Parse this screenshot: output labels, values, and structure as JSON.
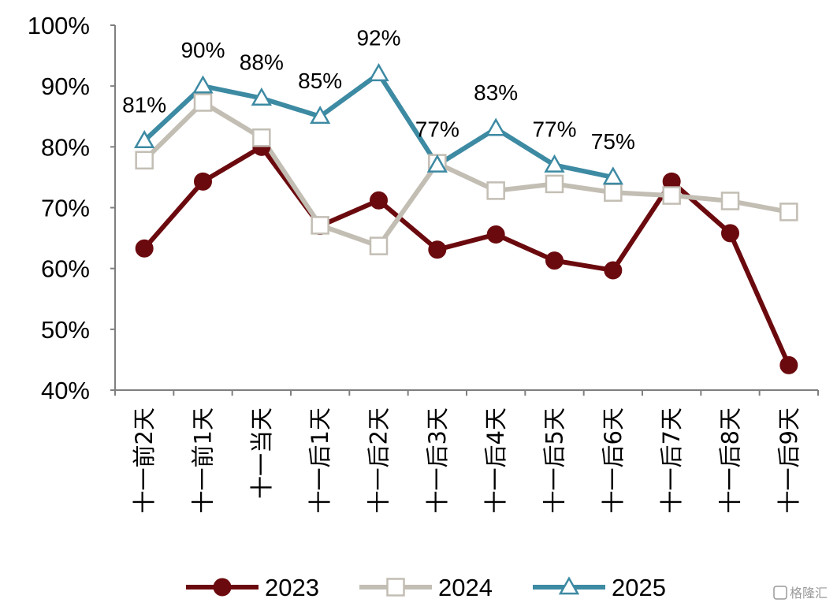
{
  "chart_data": {
    "type": "line",
    "categories": [
      "十一前2天",
      "十一前1天",
      "十一当天",
      "十一后1天",
      "十一后2天",
      "十一后3天",
      "十一后4天",
      "十一后5天",
      "十一后6天",
      "十一后7天",
      "十一后8天",
      "十一后9天"
    ],
    "ylim": [
      0.4,
      1.0
    ],
    "yticks": [
      "100%",
      "90%",
      "80%",
      "70%",
      "60%",
      "50%",
      "40%"
    ],
    "ytick_values": [
      1.0,
      0.9,
      0.8,
      0.7,
      0.6,
      0.5,
      0.4
    ],
    "grid": false,
    "legend_position": "bottom",
    "series": [
      {
        "name": "2023",
        "color": "#6b0a0e",
        "marker": "circle",
        "values": [
          0.633,
          0.743,
          0.8,
          0.67,
          0.712,
          0.631,
          0.656,
          0.613,
          0.597,
          0.743,
          0.658,
          0.441
        ]
      },
      {
        "name": "2024",
        "color": "#c3beb4",
        "marker": "square",
        "values": [
          0.778,
          0.873,
          0.815,
          0.671,
          0.637,
          0.773,
          0.728,
          0.739,
          0.725,
          0.72,
          0.711,
          0.693
        ]
      },
      {
        "name": "2025",
        "color": "#3d8aa3",
        "marker": "triangle",
        "values": [
          0.81,
          0.9,
          0.88,
          0.85,
          0.92,
          0.77,
          0.83,
          0.77,
          0.75,
          null,
          null,
          null
        ],
        "data_labels": [
          "81%",
          "90%",
          "88%",
          "85%",
          "92%",
          "77%",
          "83%",
          "77%",
          "75%",
          null,
          null,
          null
        ]
      }
    ]
  },
  "watermark": "格隆汇"
}
